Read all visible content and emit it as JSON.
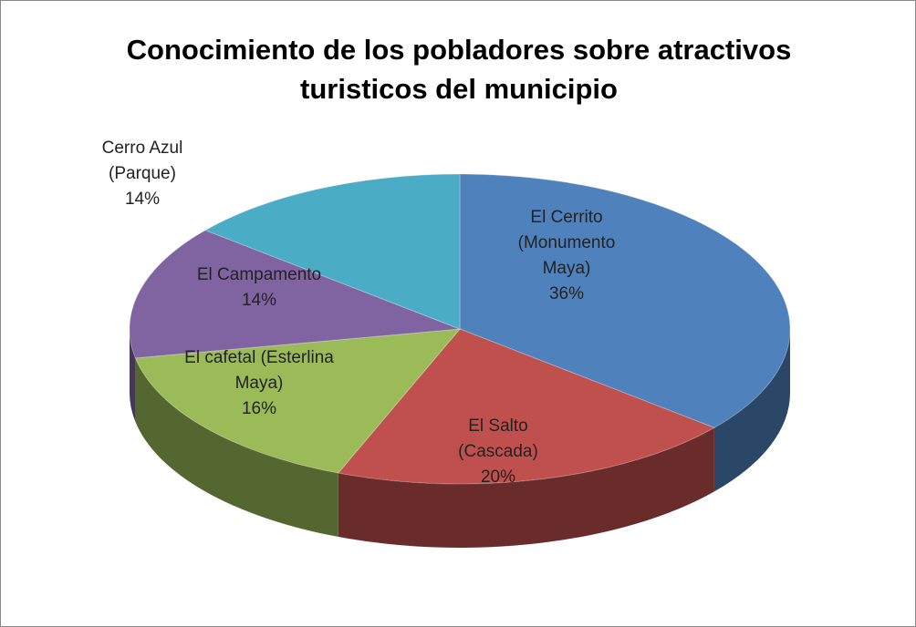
{
  "chart_data": {
    "type": "pie",
    "title": "Conocimiento de los pobladores sobre atractivos turisticos del municipio",
    "categories": [
      "El Cerrito (Monumento Maya)",
      "El Salto (Cascada)",
      "El cafetal (Esterlina Maya)",
      "El Campamento",
      "Cerro Azul (Parque)"
    ],
    "values": [
      36,
      20,
      16,
      14,
      14
    ],
    "value_labels": [
      "36%",
      "20%",
      "16%",
      "14%",
      "14%"
    ],
    "colors": [
      "#4f81bd",
      "#c0504d",
      "#9bbb59",
      "#8064a2",
      "#4bacc6"
    ]
  }
}
